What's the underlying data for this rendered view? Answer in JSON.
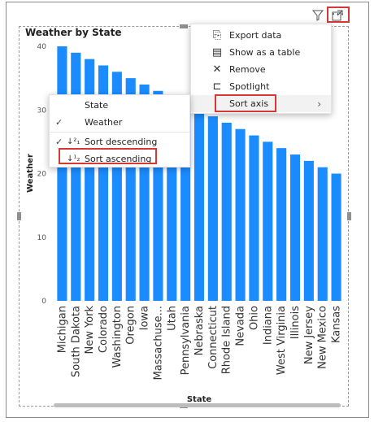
{
  "visual": {
    "title": "Weather by State"
  },
  "header": {
    "filter_icon": "filter-icon",
    "focus_icon": "focus-mode-icon",
    "more_icon": "more-options-icon",
    "more_glyph": "···"
  },
  "context_menu": {
    "items": [
      {
        "label": "Export data",
        "icon": "export-icon",
        "glyph": "⎘"
      },
      {
        "label": "Show as a table",
        "icon": "table-icon",
        "glyph": "▤"
      },
      {
        "label": "Remove",
        "icon": "close-icon",
        "glyph": "✕"
      },
      {
        "label": "Spotlight",
        "icon": "spotlight-icon",
        "glyph": "⊏"
      },
      {
        "label": "Sort axis",
        "icon": "",
        "glyph": ""
      }
    ],
    "chevron": "›"
  },
  "sort_submenu": {
    "items": [
      {
        "label": "State",
        "checked": false,
        "check": "",
        "glyph": ""
      },
      {
        "label": "Weather",
        "checked": true,
        "check": "✓",
        "glyph": ""
      },
      {
        "label": "Sort descending",
        "checked": true,
        "check": "✓",
        "glyph": "↓²₁"
      },
      {
        "label": "Sort ascending",
        "checked": false,
        "check": "",
        "glyph": "↓¹₂"
      }
    ]
  },
  "chart_data": {
    "type": "bar",
    "title": "Weather by State",
    "xlabel": "State",
    "ylabel": "Weather",
    "ylim": [
      0,
      40
    ],
    "yticks": [
      0,
      10,
      20,
      30,
      40
    ],
    "bar_color": "#1a8cff",
    "categories": [
      "Michigan",
      "South Dakota",
      "New York",
      "Colorado",
      "Washington",
      "Oregon",
      "Iowa",
      "Massachuse...",
      "Utah",
      "Pennsylvania",
      "Nebraska",
      "Connecticut",
      "Rhode Island",
      "Nevada",
      "Ohio",
      "Indiana",
      "West Virginia",
      "Illinois",
      "New Jersey",
      "New Mexico",
      "Kansas"
    ],
    "values": [
      40,
      39,
      38,
      37,
      36,
      35,
      34,
      33,
      32,
      31,
      30,
      29,
      28,
      27,
      26,
      25,
      24,
      23,
      22,
      21,
      20
    ]
  }
}
